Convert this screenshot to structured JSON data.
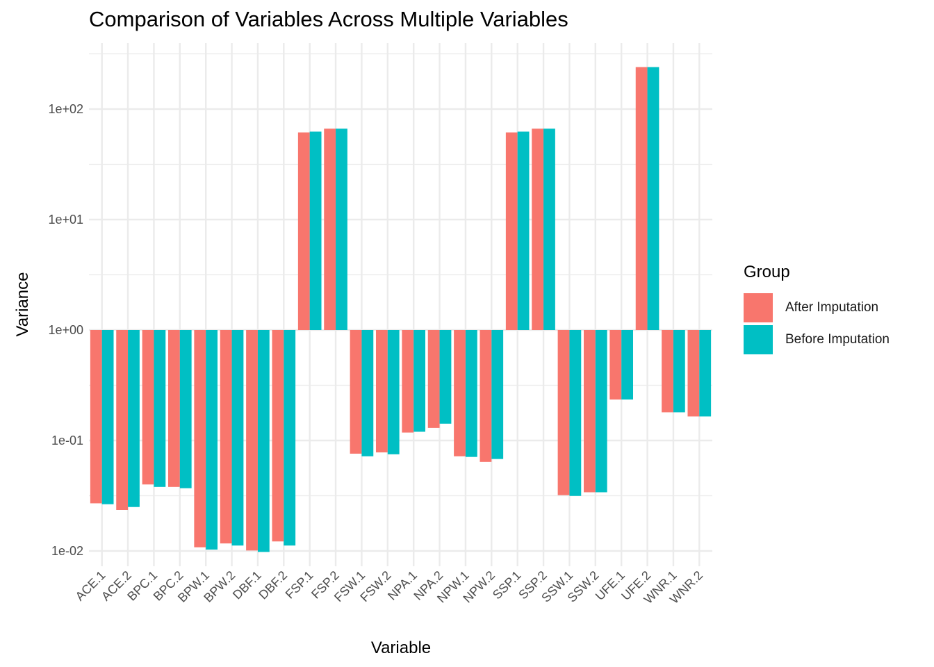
{
  "chart_data": {
    "type": "bar",
    "title": "Comparison of Variables Across Multiple Variables",
    "xlabel": "Variable",
    "ylabel": "Variance",
    "y_scale": "log10",
    "y_baseline": 1,
    "ylim": [
      0.0062,
      400
    ],
    "y_ticks": [
      0.01,
      0.1,
      1,
      10,
      100
    ],
    "y_tick_labels": [
      "1e-02",
      "1e-01",
      "1e+00",
      "1e+01",
      "1e+02"
    ],
    "grid": true,
    "legend_position": "right",
    "legend_title": "Group",
    "categories": [
      "ACE.1",
      "ACE.2",
      "BPC.1",
      "BPC.2",
      "BPW.1",
      "BPW.2",
      "DBF.1",
      "DBF.2",
      "FSP.1",
      "FSP.2",
      "FSW.1",
      "FSW.2",
      "NPA.1",
      "NPA.2",
      "NPW.1",
      "NPW.2",
      "SSP.1",
      "SSP.2",
      "SSW.1",
      "SSW.2",
      "UFE.1",
      "UFE.2",
      "WNR.1",
      "WNR.2"
    ],
    "series": [
      {
        "name": "After Imputation",
        "color": "#F8766D",
        "values": [
          0.027,
          0.0235,
          0.04,
          0.038,
          0.0108,
          0.0117,
          0.0101,
          0.0122,
          61.5,
          66.5,
          0.076,
          0.078,
          0.118,
          0.13,
          0.072,
          0.064,
          61.5,
          66.5,
          0.032,
          0.034,
          0.235,
          240,
          0.18,
          0.165
        ]
      },
      {
        "name": "Before Imputation",
        "color": "#00BFC4",
        "values": [
          0.0265,
          0.025,
          0.038,
          0.037,
          0.0103,
          0.0112,
          0.0098,
          0.0112,
          62.5,
          66.5,
          0.072,
          0.075,
          0.12,
          0.142,
          0.071,
          0.068,
          62.5,
          66.5,
          0.0315,
          0.034,
          0.235,
          240,
          0.18,
          0.165
        ]
      }
    ]
  }
}
